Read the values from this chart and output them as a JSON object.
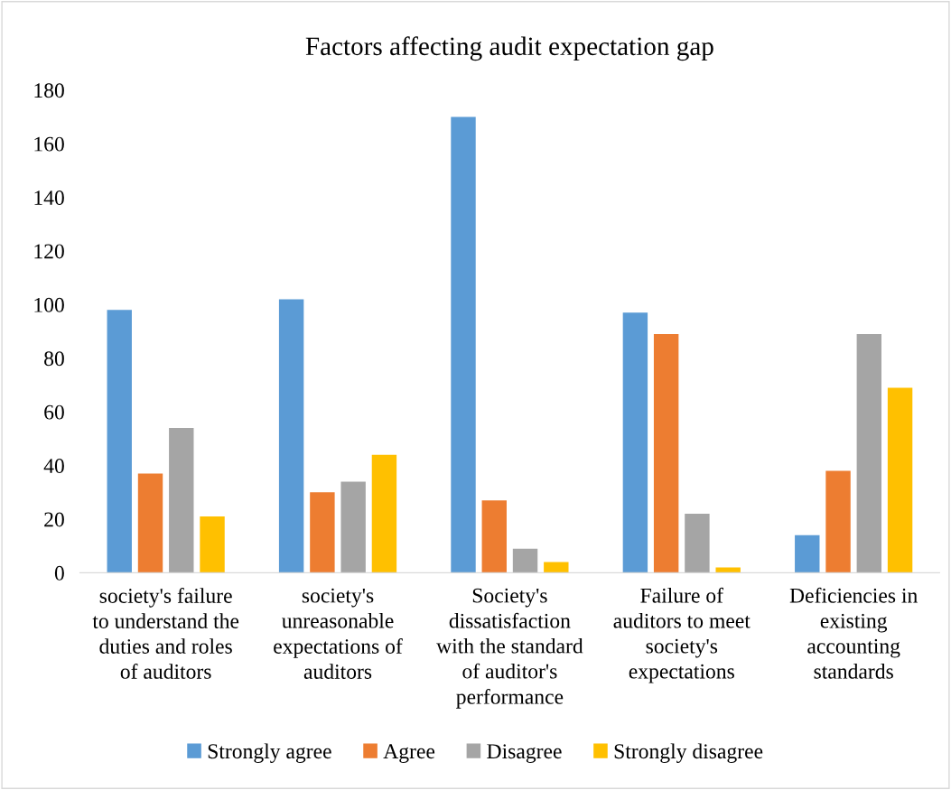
{
  "chart_data": {
    "type": "bar",
    "title": "Factors affecting audit expectation gap",
    "categories": [
      "society's failure\nto understand the\nduties and roles\nof auditors",
      "society's\nunreasonable\nexpectations of\nauditors",
      "Society's\ndissatisfaction\nwith the standard\nof auditor's\nperformance",
      "Failure of\nauditors to meet\nsociety's\nexpectations",
      "Deficiencies in\nexisting\naccounting\nstandards"
    ],
    "series": [
      {
        "name": "Strongly agree",
        "color": "#5b9bd5",
        "values": [
          98,
          102,
          170,
          97,
          14
        ]
      },
      {
        "name": "Agree",
        "color": "#ed7d31",
        "values": [
          37,
          30,
          27,
          89,
          38
        ]
      },
      {
        "name": "Disagree",
        "color": "#a5a5a5",
        "values": [
          54,
          34,
          9,
          22,
          89
        ]
      },
      {
        "name": "Strongly disagree",
        "color": "#ffc000",
        "values": [
          21,
          44,
          4,
          2,
          69
        ]
      }
    ],
    "ylim": [
      0,
      180
    ],
    "yticks": [
      0,
      20,
      40,
      60,
      80,
      100,
      120,
      140,
      160,
      180
    ],
    "grid": false,
    "legend": "bottom"
  }
}
